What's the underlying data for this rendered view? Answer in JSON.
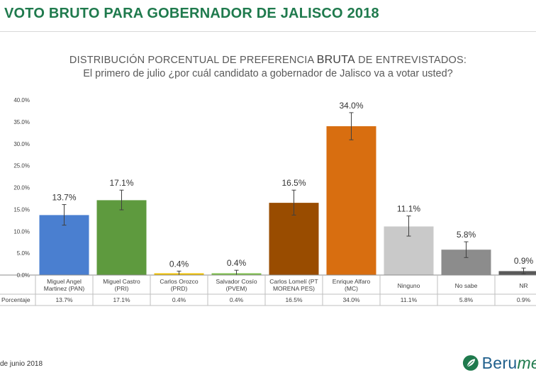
{
  "header": {
    "title": "VOTO BRUTO PARA GOBERNADOR DE JALISCO 2018"
  },
  "chart_data": {
    "type": "bar",
    "title_pre": "DISTRIBUCIÓN PORCENTUAL DE PREFERENCIA",
    "title_emph": "BRUTA",
    "title_post": "DE ENTREVISTADOS:",
    "subtitle": "El primero de julio ¿por cuál candidato a gobernador de Jalisco va a votar usted?",
    "ylim": [
      0,
      40
    ],
    "yticks": [
      0,
      5,
      10,
      15,
      20,
      25,
      30,
      35,
      40
    ],
    "ytick_labels": [
      "0.0%",
      "5.0%",
      "10.0%",
      "15.0%",
      "20.0%",
      "25.0%",
      "30.0%",
      "35.0%",
      "40.0%"
    ],
    "grid": false,
    "table_row_label": "Porcentaje",
    "categories": [
      [
        "Miguel Angel",
        "Martinez (PAN)"
      ],
      [
        "Miguel Castro",
        "(PRI)"
      ],
      [
        "Carlos Orozco",
        "(PRD)"
      ],
      [
        "Salvador Cosío",
        "(PVEM)"
      ],
      [
        "Carlos Lomelí (PT",
        "MORENA PES)"
      ],
      [
        "Enrique Alfaro",
        "(MC)"
      ],
      [
        "Ninguno"
      ],
      [
        "No sabe"
      ],
      [
        "NR"
      ]
    ],
    "series": [
      {
        "values": [
          13.7,
          17.1,
          0.4,
          0.4,
          16.5,
          34.0,
          11.1,
          5.8,
          0.9
        ],
        "labels": [
          "13.7%",
          "17.1%",
          "0.4%",
          "0.4%",
          "16.5%",
          "34.0%",
          "11.1%",
          "5.8%",
          "0.9%"
        ],
        "colors": [
          "#4a7fd0",
          "#5e9a3e",
          "#f2c200",
          "#7cbf4a",
          "#994c00",
          "#d86e10",
          "#c9c9c9",
          "#8c8c8c",
          "#595959"
        ]
      }
    ],
    "error_bars": {
      "low": [
        11.4,
        14.9,
        0.0,
        0.0,
        13.7,
        30.9,
        8.9,
        4.0,
        0.3
      ],
      "high": [
        16.1,
        19.4,
        0.9,
        1.1,
        19.4,
        37.1,
        13.5,
        7.6,
        1.6
      ]
    }
  },
  "footer": {
    "date": "de junio 2018",
    "logo_main": "Beru",
    "logo_accent": "me"
  }
}
